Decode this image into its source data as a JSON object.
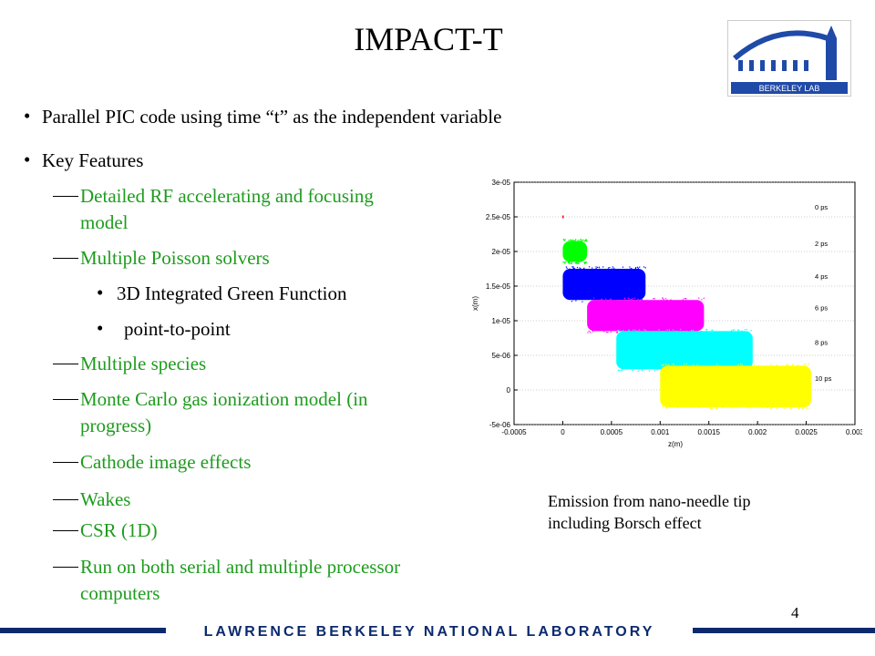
{
  "slide": {
    "title": "IMPACT-T",
    "bullets": [
      "Parallel PIC code using time “t” as the independent variable",
      "Key Features"
    ],
    "features": [
      [
        "Detailed RF accelerating and focusing",
        "model"
      ],
      [
        "Multiple Poisson solvers"
      ],
      [
        "Multiple species"
      ],
      [
        "Monte Carlo gas ionization model (in",
        "progress)"
      ],
      [
        "Cathode image effects"
      ],
      [
        "Wakes"
      ],
      [
        "CSR (1D)"
      ],
      [
        "Run on both serial and multiple processor",
        "computers"
      ]
    ],
    "solvers": [
      "3D Integrated Green Function",
      "point-to-point"
    ],
    "caption": [
      "Emission from nano-needle tip",
      "including Borsch effect"
    ],
    "page_number": "4",
    "footer_text": "LAWRENCE BERKELEY NATIONAL LABORATORY",
    "logo_text": "BERKELEY LAB",
    "colors": {
      "feature_text": "#1e9c1e",
      "footer_bar": "#0b2a6e"
    }
  },
  "chart_data": {
    "type": "scatter",
    "xlabel": "z(m)",
    "ylabel": "x(m)",
    "xlim": [
      -0.0005,
      0.003
    ],
    "ylim": [
      -5e-06,
      3e-05
    ],
    "x_ticks": [
      "-0.0005",
      "0",
      "0.0005",
      "0.001",
      "0.0015",
      "0.002",
      "0.0025",
      "0.003"
    ],
    "y_ticks": [
      "-5e-06",
      "0",
      "5e-06",
      "1e-05",
      "1.5e-05",
      "2e-05",
      "2.5e-05",
      "3e-05"
    ],
    "grid": "horizontal",
    "series": [
      {
        "name": "0 ps",
        "color": "#ff0000",
        "z": [
          0.0,
          1e-05
        ],
        "x": [
          2.5e-05,
          2.5e-05
        ]
      },
      {
        "name": "2 ps",
        "color": "#00ff00",
        "z": [
          0.0,
          0.00025
        ],
        "x": [
          1.85e-05,
          2.15e-05
        ]
      },
      {
        "name": "4 ps",
        "color": "#0000ff",
        "z": [
          0.0,
          0.00085
        ],
        "x": [
          1.3e-05,
          1.75e-05
        ]
      },
      {
        "name": "6 ps",
        "color": "#ff00ff",
        "z": [
          0.00025,
          0.00145
        ],
        "x": [
          8.5e-06,
          1.3e-05
        ]
      },
      {
        "name": "8 ps",
        "color": "#00ffff",
        "z": [
          0.00055,
          0.00195
        ],
        "x": [
          3e-06,
          8.5e-06
        ]
      },
      {
        "name": "10 ps",
        "color": "#ffff00",
        "z": [
          0.001,
          0.00255
        ],
        "x": [
          -2.5e-06,
          3.5e-06
        ]
      }
    ]
  }
}
